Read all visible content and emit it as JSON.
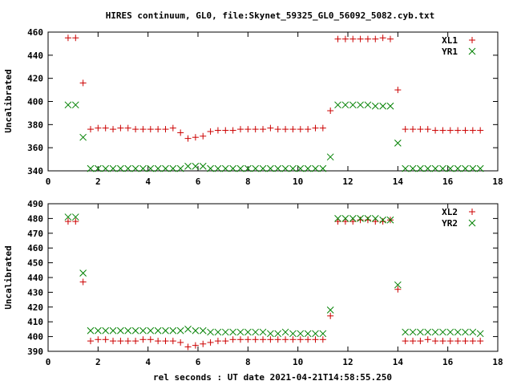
{
  "chart_data": [
    {
      "type": "scatter",
      "title": "HIRES continuum, GL0, file:Skynet_59325_GL0_56092_5082.cyb.txt",
      "xlabel": "",
      "ylabel": "Uncalibrated",
      "xlim": [
        0,
        18
      ],
      "ylim": [
        340,
        460
      ],
      "xticks": [
        0,
        2,
        4,
        6,
        8,
        10,
        12,
        14,
        16,
        18
      ],
      "yticks": [
        340,
        360,
        380,
        400,
        420,
        440,
        460
      ],
      "legend_position": "top-right",
      "grid": false,
      "x": [
        0.8,
        1.1,
        1.4,
        1.7,
        2.0,
        2.3,
        2.6,
        2.9,
        3.2,
        3.5,
        3.8,
        4.1,
        4.4,
        4.7,
        5.0,
        5.3,
        5.6,
        5.9,
        6.2,
        6.5,
        6.8,
        7.1,
        7.4,
        7.7,
        8.0,
        8.3,
        8.6,
        8.9,
        9.2,
        9.5,
        9.8,
        10.1,
        10.4,
        10.7,
        11.0,
        11.3,
        11.6,
        11.9,
        12.2,
        12.5,
        12.8,
        13.1,
        13.4,
        13.7,
        14.0,
        14.3,
        14.6,
        14.9,
        15.2,
        15.5,
        15.8,
        16.1,
        16.4,
        16.7,
        17.0,
        17.3
      ],
      "series": [
        {
          "name": "XL1",
          "marker": "plus",
          "color": "#cc0000",
          "values": [
            455,
            455,
            416,
            376,
            377,
            377,
            376,
            377,
            377,
            376,
            376,
            376,
            376,
            376,
            377,
            373,
            368,
            369,
            370,
            374,
            375,
            375,
            375,
            376,
            376,
            376,
            376,
            377,
            376,
            376,
            376,
            376,
            376,
            377,
            377,
            392,
            454,
            454,
            454,
            454,
            454,
            454,
            455,
            454,
            410,
            376,
            376,
            376,
            376,
            375,
            375,
            375,
            375,
            375,
            375,
            375
          ]
        },
        {
          "name": "YR1",
          "marker": "cross",
          "color": "#008000",
          "values": [
            397,
            397,
            369,
            342,
            342,
            342,
            342,
            342,
            342,
            342,
            342,
            342,
            342,
            342,
            342,
            342,
            344,
            344,
            344,
            342,
            342,
            342,
            342,
            342,
            342,
            342,
            342,
            342,
            342,
            342,
            342,
            342,
            342,
            342,
            342,
            352,
            397,
            397,
            397,
            397,
            397,
            396,
            396,
            396,
            364,
            342,
            342,
            342,
            342,
            342,
            342,
            342,
            342,
            342,
            342,
            342
          ]
        }
      ]
    },
    {
      "type": "scatter",
      "title": "",
      "xlabel": "rel seconds : UT date 2021-04-21T14:58:55.250",
      "ylabel": "Uncalibrated",
      "xlim": [
        0,
        18
      ],
      "ylim": [
        390,
        490
      ],
      "xticks": [
        0,
        2,
        4,
        6,
        8,
        10,
        12,
        14,
        16,
        18
      ],
      "yticks": [
        390,
        400,
        410,
        420,
        430,
        440,
        450,
        460,
        470,
        480,
        490
      ],
      "legend_position": "top-right",
      "grid": false,
      "x": [
        0.8,
        1.1,
        1.4,
        1.7,
        2.0,
        2.3,
        2.6,
        2.9,
        3.2,
        3.5,
        3.8,
        4.1,
        4.4,
        4.7,
        5.0,
        5.3,
        5.6,
        5.9,
        6.2,
        6.5,
        6.8,
        7.1,
        7.4,
        7.7,
        8.0,
        8.3,
        8.6,
        8.9,
        9.2,
        9.5,
        9.8,
        10.1,
        10.4,
        10.7,
        11.0,
        11.3,
        11.6,
        11.9,
        12.2,
        12.5,
        12.8,
        13.1,
        13.4,
        13.7,
        14.0,
        14.3,
        14.6,
        14.9,
        15.2,
        15.5,
        15.8,
        16.1,
        16.4,
        16.7,
        17.0,
        17.3
      ],
      "series": [
        {
          "name": "XL2",
          "marker": "plus",
          "color": "#cc0000",
          "values": [
            478,
            478,
            437,
            397,
            398,
            398,
            397,
            397,
            397,
            397,
            398,
            398,
            397,
            397,
            397,
            396,
            393,
            394,
            395,
            396,
            397,
            397,
            398,
            398,
            398,
            398,
            398,
            398,
            398,
            398,
            398,
            398,
            398,
            398,
            398,
            414,
            478,
            478,
            478,
            479,
            479,
            478,
            478,
            479,
            432,
            397,
            397,
            397,
            398,
            397,
            397,
            397,
            397,
            397,
            397,
            397
          ]
        },
        {
          "name": "YR2",
          "marker": "cross",
          "color": "#008000",
          "values": [
            481,
            481,
            443,
            404,
            404,
            404,
            404,
            404,
            404,
            404,
            404,
            404,
            404,
            404,
            404,
            404,
            405,
            404,
            404,
            403,
            403,
            403,
            403,
            403,
            403,
            403,
            403,
            402,
            402,
            403,
            402,
            402,
            402,
            402,
            402,
            418,
            480,
            480,
            480,
            480,
            480,
            480,
            479,
            479,
            435,
            403,
            403,
            403,
            403,
            403,
            403,
            403,
            403,
            403,
            403,
            402
          ]
        }
      ]
    }
  ]
}
